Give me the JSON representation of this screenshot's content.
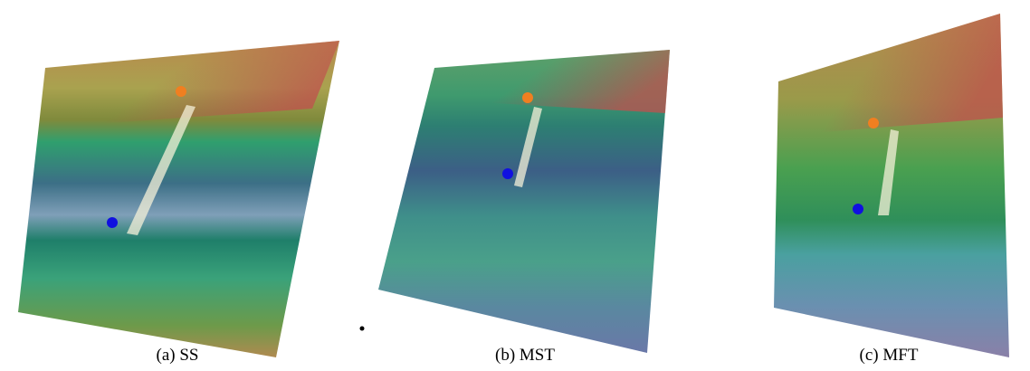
{
  "captions": [
    "(a) SS",
    "(b) MST",
    "(c) MFT"
  ]
}
